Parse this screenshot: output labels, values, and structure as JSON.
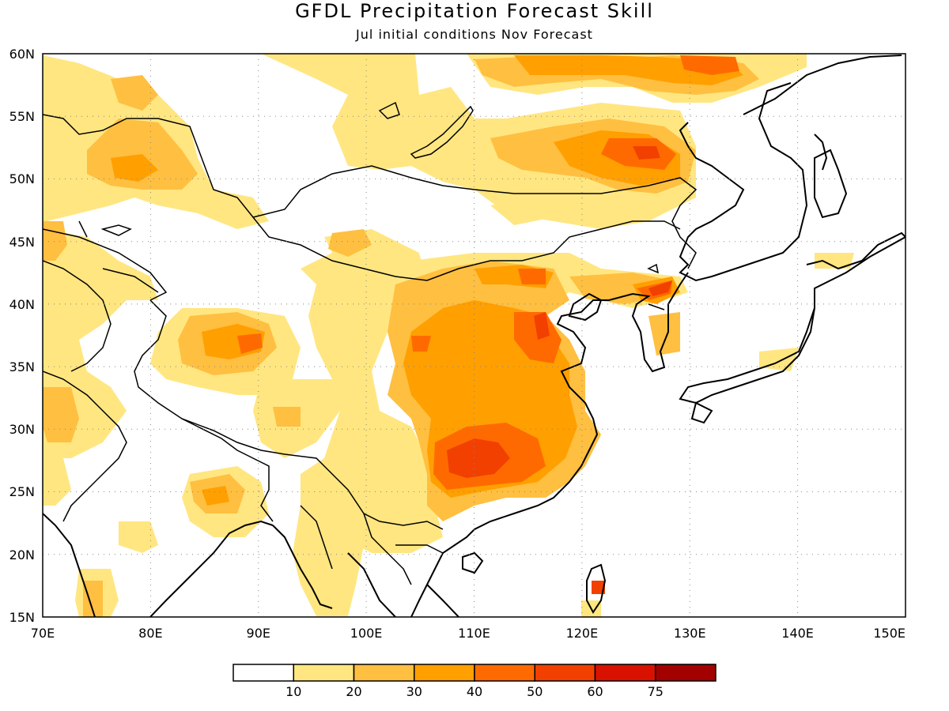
{
  "title": "GFDL Precipitation Forecast Skill",
  "subtitle": "Jul initial conditions  Nov Forecast",
  "map": {
    "lon_range": [
      70,
      150
    ],
    "lat_range": [
      15,
      60
    ],
    "lon_ticks": [
      70,
      80,
      90,
      100,
      110,
      120,
      130,
      140,
      150
    ],
    "lat_ticks": [
      15,
      20,
      25,
      30,
      35,
      40,
      45,
      50,
      55,
      60
    ],
    "lon_tick_labels": [
      "70E",
      "80E",
      "90E",
      "100E",
      "110E",
      "120E",
      "130E",
      "140E",
      "150E"
    ],
    "lat_tick_labels": [
      "15N",
      "20N",
      "25N",
      "30N",
      "35N",
      "40N",
      "45N",
      "50N",
      "55N",
      "60N"
    ],
    "grid": "dotted"
  },
  "legend": {
    "colors": [
      "#ffffff",
      "#ffe680",
      "#ffbf40",
      "#ff9f00",
      "#ff6a00",
      "#f24000",
      "#d91200",
      "#a30000"
    ],
    "labels": [
      "10",
      "20",
      "30",
      "40",
      "50",
      "60",
      "75"
    ]
  }
}
